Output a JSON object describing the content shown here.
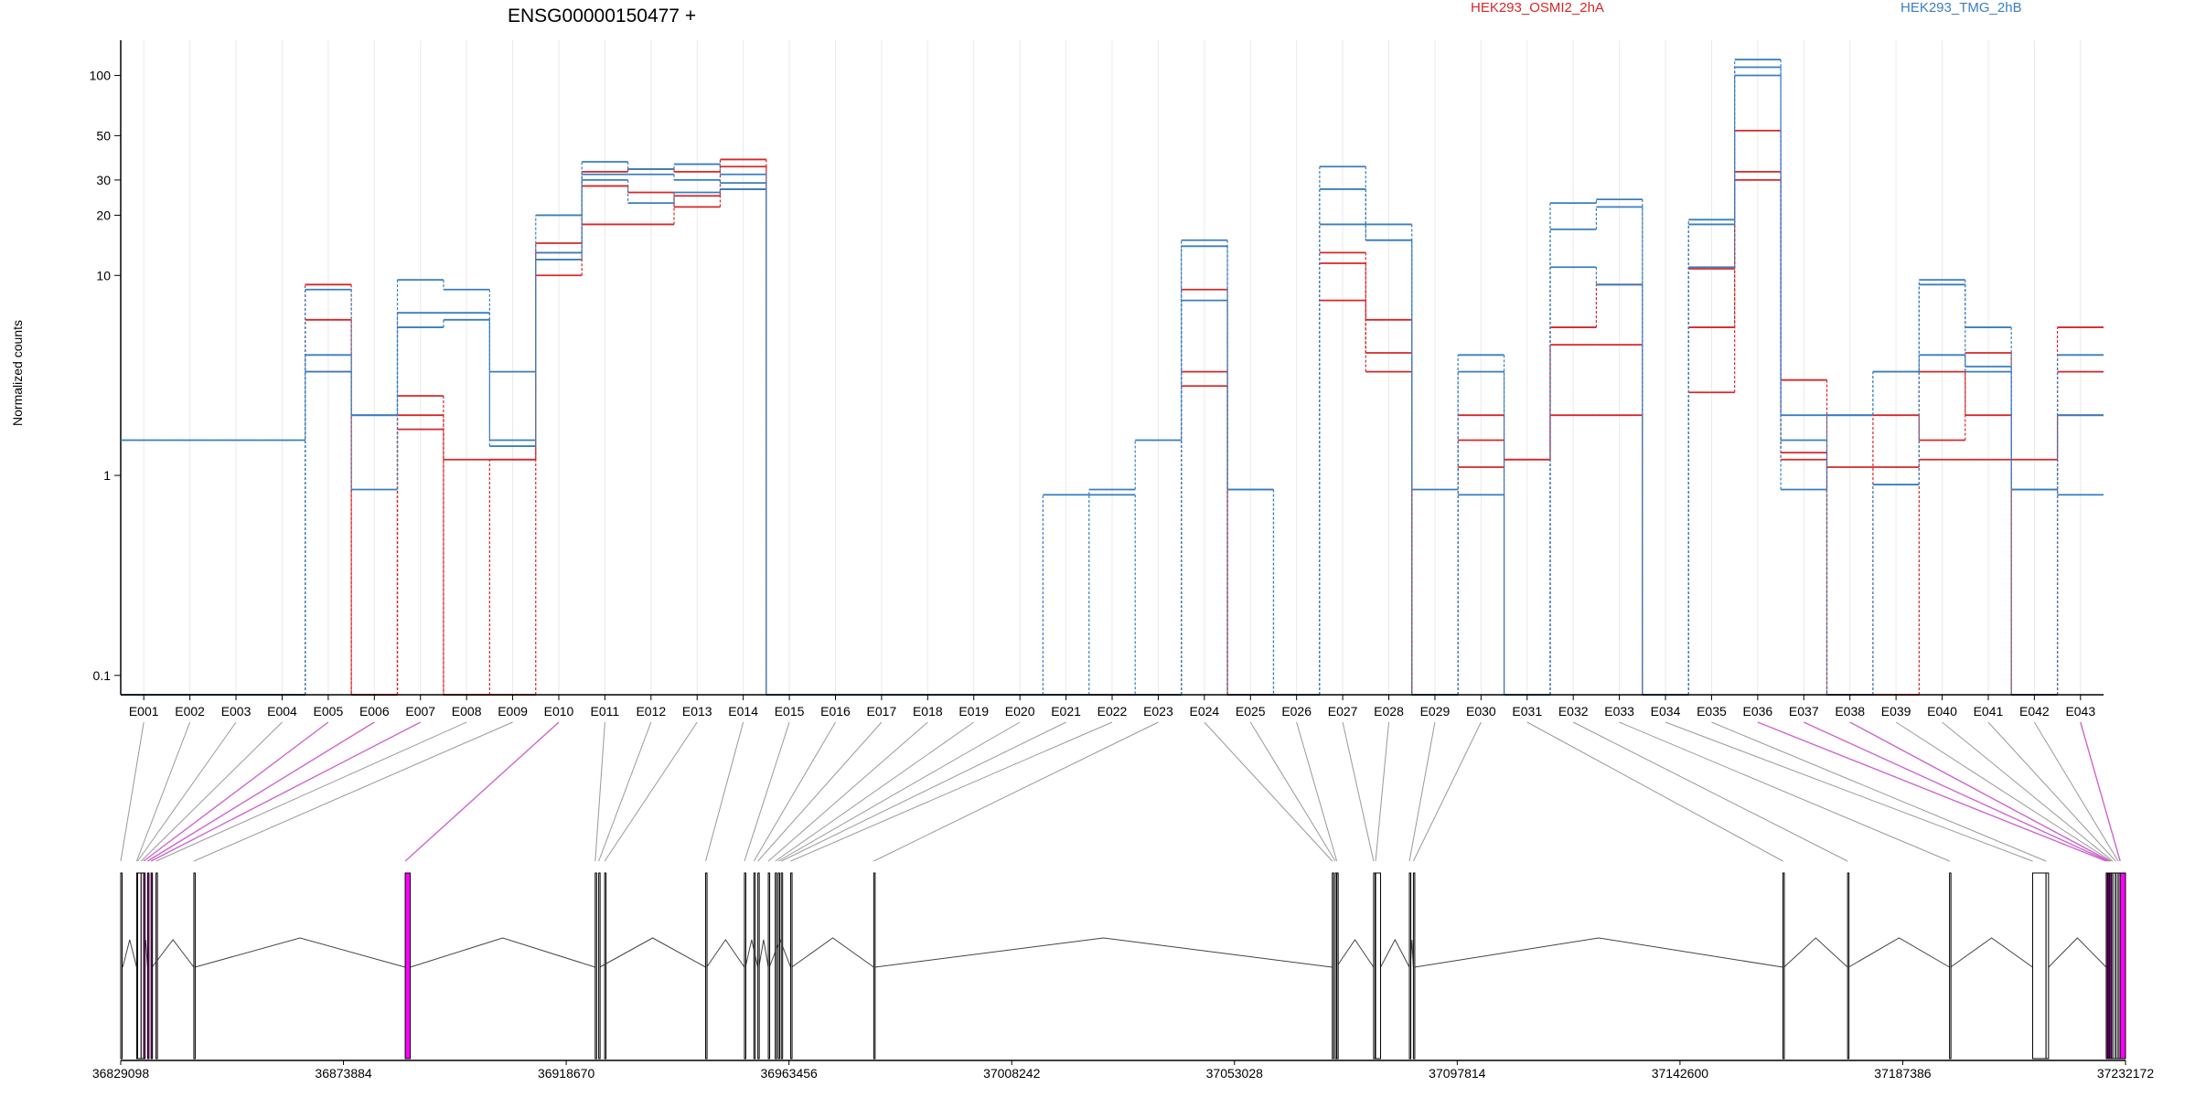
{
  "title": "ENSG00000150477 +",
  "legend": [
    {
      "label": "HEK293_OSMI2_2hA",
      "color": "#d62728"
    },
    {
      "label": "HEK293_TMG_2hB",
      "color": "#3a7ebf"
    }
  ],
  "colors": {
    "red": "#d62728",
    "blue": "#3a7ebf",
    "exon_highlight": "#ff00ff",
    "exon_other": "#c8c8c8",
    "structure": "#000000",
    "connector_default": "#999999",
    "connector_highlight": "#cc66cc"
  },
  "chart_data": {
    "type": "line",
    "ylabel": "Normalized counts",
    "yscale": "log",
    "yticks": [
      "0.1",
      "1",
      "10",
      "20",
      "30",
      "50",
      "100"
    ],
    "ylim": [
      0.08,
      150
    ],
    "categories": [
      "E001",
      "E002",
      "E003",
      "E004",
      "E005",
      "E006",
      "E007",
      "E008",
      "E009",
      "E010",
      "E011",
      "E012",
      "E013",
      "E014",
      "E015",
      "E016",
      "E017",
      "E018",
      "E019",
      "E020",
      "E021",
      "E022",
      "E023",
      "E024",
      "E025",
      "E026",
      "E027",
      "E028",
      "E029",
      "E030",
      "E031",
      "E032",
      "E033",
      "E034",
      "E035",
      "E036",
      "E037",
      "E038",
      "E039",
      "E040",
      "E041",
      "E042",
      "E043"
    ],
    "series": [
      {
        "group": "HEK293_OSMI2_2hA",
        "color": "#d62728",
        "values": [
          0.07,
          0.07,
          0.07,
          0.07,
          9.0,
          0.07,
          2.5,
          0.07,
          0.07,
          14.5,
          33,
          34,
          33,
          38,
          0.07,
          0.07,
          0.07,
          0.07,
          0.07,
          0.07,
          0.07,
          0.07,
          0.07,
          8.5,
          0.07,
          0.07,
          13,
          6,
          0.07,
          2.0,
          0.07,
          5.5,
          9.0,
          0.07,
          10.8,
          53,
          1.3,
          0.07,
          2.0,
          1.5,
          4.1,
          0.07,
          5.5
        ]
      },
      {
        "group": "HEK293_OSMI2_2hA",
        "color": "#d62728",
        "values": [
          0.07,
          0.07,
          0.07,
          0.07,
          6.0,
          0.07,
          2.0,
          1.2,
          1.2,
          10,
          18,
          18,
          25,
          35,
          0.07,
          0.07,
          0.07,
          0.07,
          0.07,
          0.07,
          0.07,
          0.07,
          0.07,
          3.3,
          0.07,
          0.07,
          11.5,
          4.1,
          0.07,
          1.5,
          1.2,
          4.5,
          4.5,
          0.07,
          5.5,
          33,
          1.2,
          1.1,
          1.1,
          1.2,
          1.2,
          0.07,
          3.3
        ]
      },
      {
        "group": "HEK293_OSMI2_2hA",
        "color": "#d62728",
        "values": [
          0.07,
          0.07,
          0.07,
          0.07,
          3.3,
          0.07,
          1.7,
          0.07,
          1.2,
          13,
          28,
          26,
          22,
          27,
          0.07,
          0.07,
          0.07,
          0.07,
          0.07,
          0.07,
          0.07,
          0.07,
          0.07,
          2.8,
          0.07,
          0.07,
          7.5,
          3.3,
          0.07,
          1.1,
          1.2,
          2.0,
          2.0,
          0.07,
          2.6,
          30,
          3.0,
          0.07,
          0.07,
          3.3,
          2.0,
          1.2,
          2.0
        ]
      },
      {
        "group": "HEK293_TMG_2hB",
        "color": "#3a7ebf",
        "values": [
          1.5,
          1.5,
          1.5,
          1.5,
          4.0,
          2.0,
          9.5,
          8.5,
          3.3,
          20,
          37,
          34,
          36,
          32,
          0.07,
          0.07,
          0.07,
          0.07,
          0.07,
          0.07,
          0.8,
          0.85,
          1.5,
          15,
          0.85,
          0.07,
          35,
          18,
          0.85,
          3.3,
          0.07,
          23,
          24,
          0.07,
          19,
          120,
          2.0,
          2.0,
          3.3,
          9.5,
          5.5,
          0.07,
          4.0
        ]
      },
      {
        "group": "HEK293_TMG_2hB",
        "color": "#3a7ebf",
        "values": [
          0.07,
          0.07,
          0.07,
          0.07,
          8.5,
          0.85,
          6.5,
          6.5,
          1.5,
          13,
          32,
          32,
          30,
          29,
          0.07,
          0.07,
          0.07,
          0.07,
          0.07,
          0.07,
          0.07,
          0.8,
          0.07,
          14,
          0.85,
          0.07,
          18,
          15,
          0.07,
          4.0,
          0.07,
          17,
          22,
          0.07,
          18,
          110,
          1.5,
          0.07,
          0.9,
          4.0,
          3.3,
          0.85,
          2.0
        ]
      },
      {
        "group": "HEK293_TMG_2hB",
        "color": "#3a7ebf",
        "values": [
          0.07,
          0.07,
          0.07,
          0.07,
          3.3,
          2.0,
          5.5,
          6.0,
          1.4,
          12,
          30,
          23,
          26,
          27,
          0.07,
          0.07,
          0.07,
          0.07,
          0.07,
          0.07,
          0.07,
          0.07,
          0.07,
          7.5,
          0.07,
          0.07,
          27,
          15,
          0.07,
          0.8,
          0.07,
          11,
          9.0,
          0.07,
          11,
          100,
          0.85,
          2.0,
          3.3,
          9.0,
          3.5,
          0.85,
          0.8
        ]
      }
    ],
    "genomic_ticks": [
      "36829098",
      "36873884",
      "36918670",
      "36963456",
      "37008242",
      "37053028",
      "37097814",
      "37142600",
      "37187386",
      "37232172"
    ],
    "genomic_range": [
      36829098,
      37232172
    ],
    "exon_coords": [
      [
        36829098,
        36829300
      ],
      [
        36832300,
        36832500
      ],
      [
        36832500,
        36833200
      ],
      [
        36833200,
        36833700
      ],
      [
        36833700,
        36834000
      ],
      [
        36834500,
        36834700
      ],
      [
        36835200,
        36835400
      ],
      [
        36836200,
        36836400
      ],
      [
        36843800,
        36844000
      ],
      [
        36886300,
        36887300
      ],
      [
        36924500,
        36924700
      ],
      [
        36925200,
        36925400
      ],
      [
        36926400,
        36926600
      ],
      [
        36946700,
        36946900
      ],
      [
        36954500,
        36954700
      ],
      [
        36956400,
        36956600
      ],
      [
        36957200,
        36957400
      ],
      [
        36959300,
        36959500
      ],
      [
        36960700,
        36960900
      ],
      [
        36961300,
        36961500
      ],
      [
        36961900,
        36962100
      ],
      [
        36963800,
        36964000
      ],
      [
        36980500,
        36980700
      ],
      [
        37072700,
        37072900
      ],
      [
        37073300,
        37073500
      ],
      [
        37073600,
        37073800
      ],
      [
        37081000,
        37081300
      ],
      [
        37081400,
        37082400
      ],
      [
        37088200,
        37088400
      ],
      [
        37089000,
        37089200
      ],
      [
        37163300,
        37163500
      ],
      [
        37176300,
        37176500
      ],
      [
        37196800,
        37197000
      ],
      [
        37213500,
        37216200
      ],
      [
        37216200,
        37216700
      ],
      [
        37228300,
        37228500
      ],
      [
        37228700,
        37229000
      ],
      [
        37229000,
        37229300
      ],
      [
        37229300,
        37229600
      ],
      [
        37229600,
        37230200
      ],
      [
        37230200,
        37230700
      ],
      [
        37230700,
        37231100
      ],
      [
        37231100,
        37232172
      ]
    ],
    "highlighted_exons": [
      "E005",
      "E006",
      "E007",
      "E010",
      "E036",
      "E037",
      "E038",
      "E043"
    ],
    "grey_exons": [
      "E039",
      "E040",
      "E041",
      "E042"
    ],
    "transcript_exons": [
      [
        36829098,
        36829500
      ],
      [
        36832300,
        36833700
      ],
      [
        36834500,
        36834700
      ],
      [
        36835200,
        36835400
      ],
      [
        36843800,
        36844000
      ],
      [
        36886300,
        36887300
      ],
      [
        36924500,
        36924700
      ],
      [
        36925200,
        36925400
      ],
      [
        36946700,
        36946900
      ],
      [
        36954500,
        36954700
      ],
      [
        36957200,
        36957400
      ],
      [
        36959300,
        36959500
      ],
      [
        36963800,
        36964000
      ],
      [
        36980500,
        36980700
      ],
      [
        37072700,
        37072900
      ],
      [
        37073300,
        37073500
      ],
      [
        37081000,
        37082400
      ],
      [
        37088200,
        37088400
      ],
      [
        37089000,
        37089200
      ],
      [
        37163300,
        37163500
      ],
      [
        37176300,
        37176500
      ],
      [
        37196800,
        37197000
      ],
      [
        37213500,
        37216700
      ],
      [
        37228300,
        37229600
      ],
      [
        37229600,
        37232172
      ]
    ]
  }
}
